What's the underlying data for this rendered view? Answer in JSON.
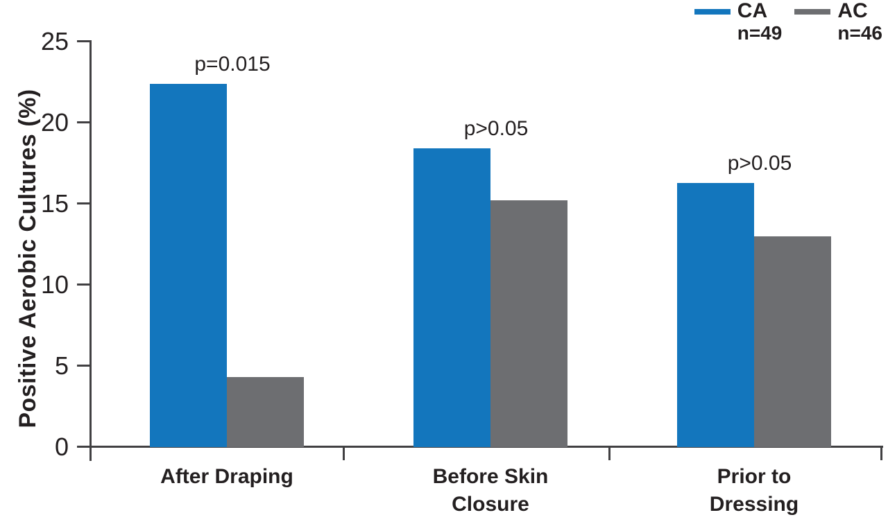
{
  "chart_data": {
    "type": "bar",
    "title": "",
    "ylabel": "Positive Aerobic Cultures (%)",
    "xlabel": "",
    "ylim": [
      0,
      25
    ],
    "yticks": [
      0,
      5,
      10,
      15,
      20,
      25
    ],
    "categories": [
      "After Draping",
      "Before Skin\nClosure",
      "Prior to\nDressing"
    ],
    "series": [
      {
        "name": "CA",
        "sublabel": "n=49",
        "color": "#1376BD",
        "values": [
          22.4,
          18.4,
          16.3
        ]
      },
      {
        "name": "AC",
        "sublabel": "n=46",
        "color": "#6D6E71",
        "values": [
          4.3,
          15.2,
          13.0
        ]
      }
    ],
    "annotations": [
      {
        "text": "p=0.015",
        "group": 0
      },
      {
        "text": "p>0.05",
        "group": 1
      },
      {
        "text": "p>0.05",
        "group": 2
      }
    ],
    "legend_position": "top-right",
    "grid": false,
    "axis_color": "#414042",
    "text_color": "#231F20"
  }
}
